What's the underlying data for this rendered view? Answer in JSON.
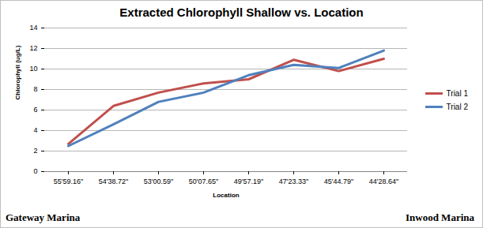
{
  "chart_data": {
    "type": "line",
    "title": "Extracted Chlorophyll Shallow vs. Location",
    "x_label": "Location",
    "y_label": "Chlorophyll (ug/L)",
    "categories": [
      "55'59.16\"",
      "54'38.72\"",
      "53'00.59\"",
      "50'07.65\"",
      "49'57.19\"",
      "47'23.33\"",
      "45'44.79\"",
      "44'28.64\""
    ],
    "series": [
      {
        "name": "Trial 1",
        "color": "#c0504d",
        "values": [
          2.7,
          6.4,
          7.7,
          8.6,
          9.0,
          10.9,
          9.8,
          11.0
        ]
      },
      {
        "name": "Trial 2",
        "color": "#4f81bd",
        "values": [
          2.5,
          4.6,
          6.8,
          7.7,
          9.4,
          10.4,
          10.1,
          11.8
        ]
      }
    ],
    "ylim": [
      0,
      14
    ],
    "yticks": [
      0,
      2,
      4,
      6,
      8,
      10,
      12,
      14
    ],
    "grid": true,
    "legend": "right",
    "annotations": [
      "Gateway Marina",
      "Inwood Marina"
    ]
  }
}
